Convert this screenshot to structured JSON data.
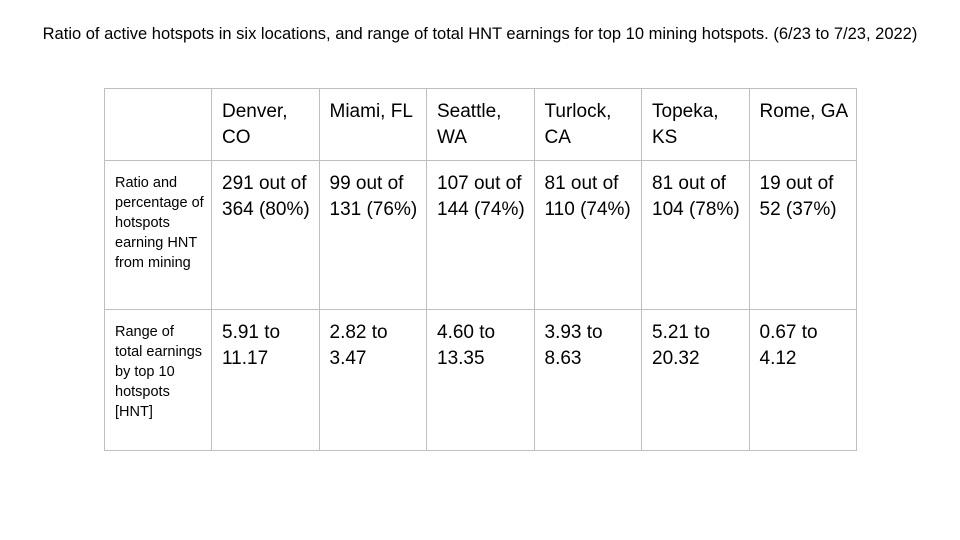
{
  "title": "Ratio of active hotspots in six locations, and range of total HNT earnings for top 10 mining hotspots. (6/23 to 7/23, 2022)",
  "table": {
    "header": [
      "",
      "Denver, CO",
      "Miami, FL",
      "Seattle, WA",
      "Turlock, CA",
      "Topeka, KS",
      "Rome, GA"
    ],
    "rows": [
      {
        "label": "Ratio and percentage of hotspots earning HNT from mining",
        "cells": [
          "291 out of 364 (80%)",
          "99 out of 131 (76%)",
          "107 out of 144 (74%)",
          "81 out of 110 (74%)",
          "81 out of 104 (78%)",
          "19 out of 52 (37%)"
        ]
      },
      {
        "label": "Range of total earnings by top 10 hotspots [HNT]",
        "cells": [
          "5.91 to 11.17",
          "2.82 to 3.47",
          "4.60 to 13.35",
          "3.93 to 8.63",
          "5.21 to 20.32",
          "0.67 to 4.12"
        ]
      }
    ]
  }
}
